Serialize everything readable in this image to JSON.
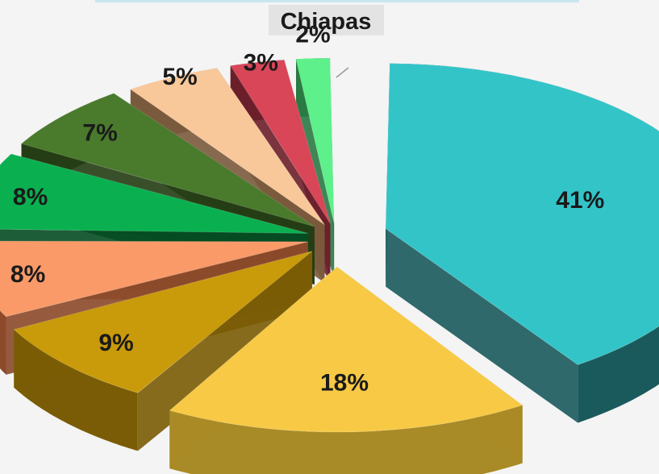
{
  "chart_data": {
    "type": "pie",
    "title": "Chiapas",
    "three_d": true,
    "exploded": true,
    "slices": [
      {
        "label": "41%",
        "value": 41,
        "color": "#33c4c8",
        "side_color": "#1a5a5c"
      },
      {
        "label": "18%",
        "value": 18,
        "color": "#f7c945",
        "side_color": "#a88a26"
      },
      {
        "label": "9%",
        "value": 9,
        "color": "#c99a0a",
        "side_color": "#7a5c06"
      },
      {
        "label": "8%",
        "value": 8,
        "color": "#f99a68",
        "side_color": "#8c4a2a"
      },
      {
        "label": "8%",
        "value": 8,
        "color": "#0ab050",
        "side_color": "#054d22"
      },
      {
        "label": "7%",
        "value": 7,
        "color": "#4a7a2c",
        "side_color": "#253d14"
      },
      {
        "label": "5%",
        "value": 5,
        "color": "#f8c89a",
        "side_color": "#7a5a3c"
      },
      {
        "label": "3%",
        "value": 3,
        "color": "#d84658",
        "side_color": "#6c1f2a"
      },
      {
        "label": "2%",
        "value": 2,
        "color": "#5ef08a",
        "side_color": "#2a7a44"
      }
    ]
  }
}
